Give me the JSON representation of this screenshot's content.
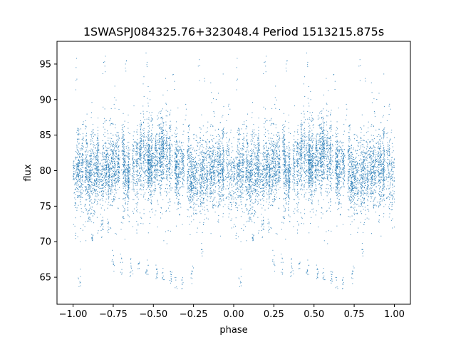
{
  "chart_data": {
    "type": "scatter",
    "title": "1SWASPJ084325.76+323048.4 Period 1513215.875s",
    "xlabel": "phase",
    "ylabel": "flux",
    "xlim": [
      -1.1,
      1.1
    ],
    "ylim": [
      61.2,
      98.2
    ],
    "xticks": [
      -1.0,
      -0.75,
      -0.5,
      -0.25,
      0.0,
      0.25,
      0.5,
      0.75,
      1.0
    ],
    "xtick_labels": [
      "−1.00",
      "−0.75",
      "−0.50",
      "−0.25",
      "0.00",
      "0.25",
      "0.50",
      "0.75",
      "1.00"
    ],
    "yticks": [
      65,
      70,
      75,
      80,
      85,
      90,
      95
    ],
    "ytick_labels": [
      "65",
      "70",
      "75",
      "80",
      "85",
      "90",
      "95"
    ],
    "grid": false,
    "legend": "none",
    "marker_color": "#1f77b4",
    "series": [
      {
        "phase_range": [
          0.0,
          1.0
        ],
        "mirrored_copy_offset": -1.0,
        "main_band_points": [
          [
            0.0,
            79.0
          ],
          [
            0.05,
            80.0
          ],
          [
            0.1,
            79.5
          ],
          [
            0.15,
            80.5
          ],
          [
            0.2,
            81.0
          ],
          [
            0.25,
            80.0
          ],
          [
            0.3,
            80.5
          ],
          [
            0.35,
            80.0
          ],
          [
            0.4,
            80.5
          ],
          [
            0.45,
            81.5
          ],
          [
            0.5,
            81.0
          ],
          [
            0.55,
            82.0
          ],
          [
            0.6,
            81.5
          ],
          [
            0.65,
            81.0
          ],
          [
            0.7,
            80.5
          ],
          [
            0.75,
            79.5
          ],
          [
            0.8,
            79.0
          ],
          [
            0.85,
            80.0
          ],
          [
            0.9,
            80.5
          ],
          [
            0.95,
            80.0
          ],
          [
            1.0,
            79.0
          ]
        ],
        "main_band_spread": 3.0,
        "dip_points": [
          [
            0.04,
            64.5
          ],
          [
            0.12,
            71.0
          ],
          [
            0.22,
            72.5
          ],
          [
            0.25,
            67.0
          ],
          [
            0.3,
            67.0
          ],
          [
            0.36,
            66.5
          ],
          [
            0.41,
            67.0
          ],
          [
            0.46,
            66.0
          ],
          [
            0.52,
            65.5
          ],
          [
            0.56,
            65.0
          ],
          [
            0.61,
            65.0
          ],
          [
            0.64,
            64.5
          ],
          [
            0.68,
            64.5
          ],
          [
            0.74,
            65.5
          ],
          [
            0.8,
            69.0
          ],
          [
            0.31,
            73.0
          ],
          [
            0.18,
            72.0
          ],
          [
            0.1,
            73.5
          ]
        ],
        "high_points": [
          [
            0.02,
            93.0
          ],
          [
            0.2,
            95.0
          ],
          [
            0.26,
            91.0
          ],
          [
            0.33,
            94.0
          ],
          [
            0.46,
            95.5
          ],
          [
            0.48,
            89.0
          ],
          [
            0.58,
            92.0
          ],
          [
            0.63,
            92.5
          ],
          [
            0.78,
            95.0
          ],
          [
            0.82,
            93.5
          ],
          [
            0.86,
            91.0
          ],
          [
            0.9,
            89.5
          ],
          [
            0.97,
            88.0
          ],
          [
            0.44,
            90.5
          ],
          [
            0.7,
            88.5
          ]
        ]
      }
    ]
  }
}
